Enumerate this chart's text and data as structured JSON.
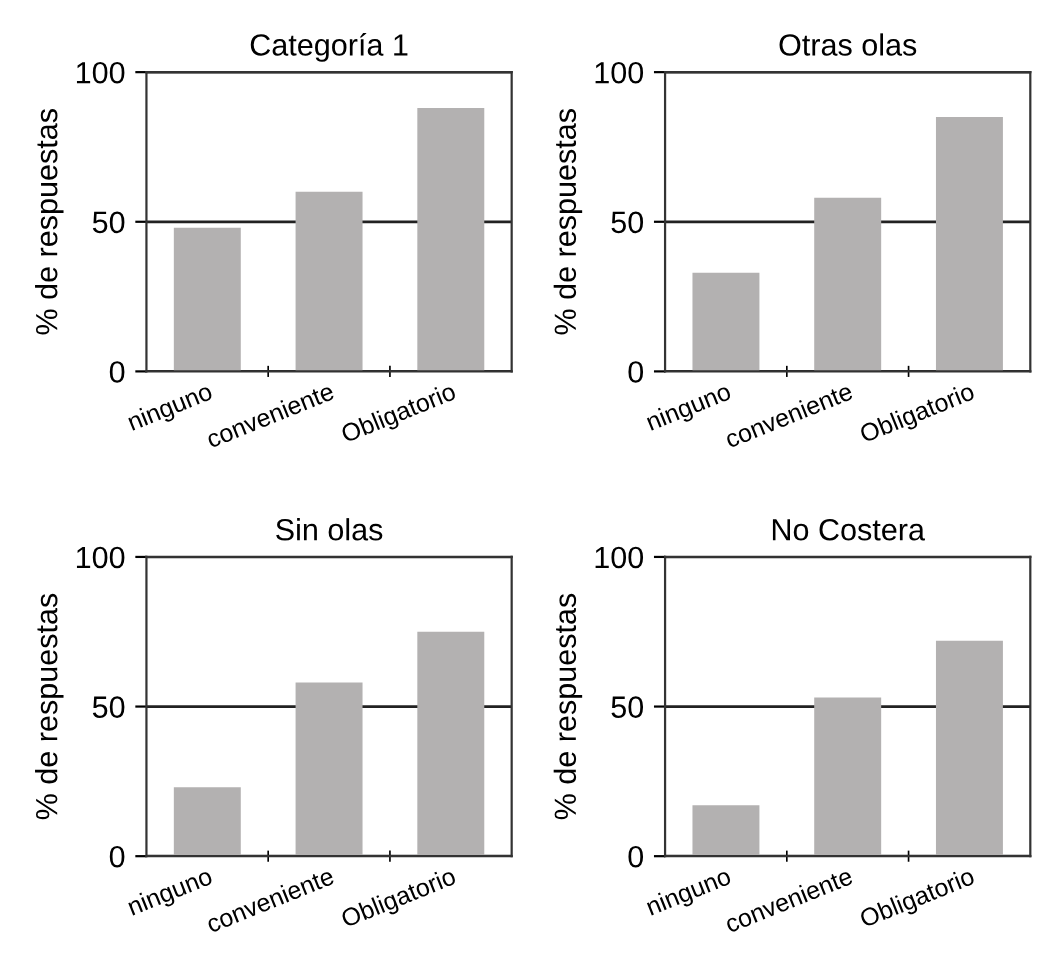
{
  "chart_data": [
    {
      "type": "bar",
      "title": "Categoría 1",
      "ylabel": "% de respuestas",
      "categories": [
        "ninguno",
        "conveniente",
        "Obligatorio"
      ],
      "values": [
        48,
        60,
        88
      ],
      "color": "#b3b1b1",
      "ylim": [
        0,
        100
      ],
      "yticks": [
        0,
        50,
        100
      ],
      "grid": "y"
    },
    {
      "type": "bar",
      "title": "Otras olas",
      "ylabel": "% de respuestas",
      "categories": [
        "ninguno",
        "conveniente",
        "Obligatorio"
      ],
      "values": [
        33,
        58,
        85
      ],
      "color": "#b3b1b1",
      "ylim": [
        0,
        100
      ],
      "yticks": [
        0,
        50,
        100
      ],
      "grid": "y"
    },
    {
      "type": "bar",
      "title": "Sin olas",
      "ylabel": "% de respuestas",
      "categories": [
        "ninguno",
        "conveniente",
        "Obligatorio"
      ],
      "values": [
        23,
        58,
        75
      ],
      "color": "#b3b1b1",
      "ylim": [
        0,
        100
      ],
      "yticks": [
        0,
        50,
        100
      ],
      "grid": "y"
    },
    {
      "type": "bar",
      "title": "No Costera",
      "ylabel": "% de respuestas",
      "categories": [
        "ninguno",
        "conveniente",
        "Obligatorio"
      ],
      "values": [
        17,
        53,
        72
      ],
      "color": "#b3b1b1",
      "ylim": [
        0,
        100
      ],
      "yticks": [
        0,
        50,
        100
      ],
      "grid": "y"
    }
  ]
}
